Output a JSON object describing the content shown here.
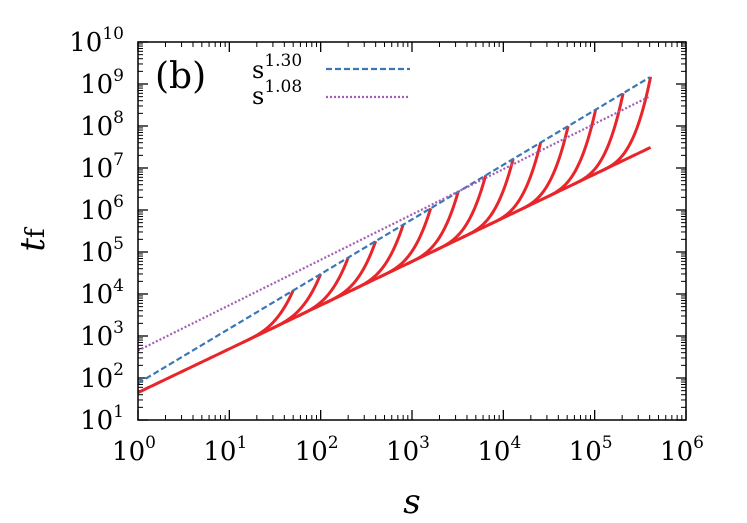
{
  "chart_data": {
    "type": "line",
    "panel_label": "(b)",
    "xlabel": "s",
    "ylabel": "t",
    "ylabel_subscript": "f",
    "xscale": "log",
    "yscale": "log",
    "xlim": [
      1,
      1000000
    ],
    "ylim": [
      10,
      10000000000
    ],
    "x_ticks": [
      {
        "base": "10",
        "exp": "0",
        "value": 1
      },
      {
        "base": "10",
        "exp": "1",
        "value": 10
      },
      {
        "base": "10",
        "exp": "2",
        "value": 100
      },
      {
        "base": "10",
        "exp": "3",
        "value": 1000
      },
      {
        "base": "10",
        "exp": "4",
        "value": 10000
      },
      {
        "base": "10",
        "exp": "5",
        "value": 100000
      },
      {
        "base": "10",
        "exp": "6",
        "value": 1000000
      }
    ],
    "y_ticks": [
      {
        "base": "10",
        "exp": "1",
        "value": 10
      },
      {
        "base": "10",
        "exp": "2",
        "value": 100
      },
      {
        "base": "10",
        "exp": "3",
        "value": 1000
      },
      {
        "base": "10",
        "exp": "4",
        "value": 10000
      },
      {
        "base": "10",
        "exp": "5",
        "value": 100000
      },
      {
        "base": "10",
        "exp": "6",
        "value": 1000000
      },
      {
        "base": "10",
        "exp": "7",
        "value": 10000000
      },
      {
        "base": "10",
        "exp": "8",
        "value": 100000000
      },
      {
        "base": "10",
        "exp": "9",
        "value": 1000000000
      },
      {
        "base": "10",
        "exp": "10",
        "value": 10000000000
      }
    ],
    "legend_position": "top-left",
    "series": [
      {
        "name": "s^1.30",
        "label_base": "s",
        "label_exp": "1.30",
        "style": "dashed",
        "color": "#3a78b5",
        "prefactor": 75,
        "exponent": 1.3,
        "x_range": [
          1,
          400000
        ]
      },
      {
        "name": "s^1.08",
        "label_base": "s",
        "label_exp": "1.08",
        "style": "dotted",
        "color": "#a25db5",
        "prefactor": 450,
        "exponent": 1.08,
        "x_range": [
          1,
          400000
        ]
      }
    ],
    "data_curves": {
      "color": "#e8252a",
      "base_prefactor": 45,
      "base_exponent": 1.04,
      "branch_end_x": [
        50,
        100,
        200,
        400,
        800,
        1600,
        3200,
        6400,
        12800,
        25600,
        51200,
        102400,
        204800,
        409600
      ],
      "branch_end_prefactor": 75,
      "branch_end_exponent": 1.3
    }
  }
}
